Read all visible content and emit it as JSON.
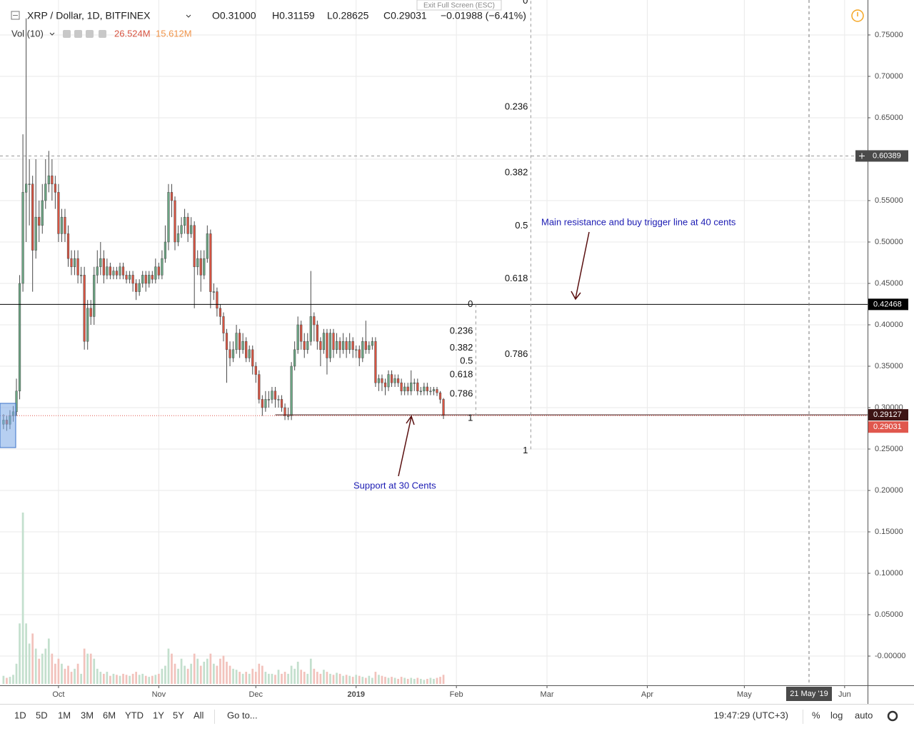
{
  "header": {
    "symbol": "XRP / Dollar, 1D, BITFINEX",
    "open": "O0.31000",
    "high": "H0.31159",
    "low": "L0.28625",
    "close": "C0.29031",
    "change": "−0.01988 (−6.41%)",
    "volume_indicator": "Vol (10)",
    "volume": "26.524M",
    "volume_ma": "15.612M",
    "exit_fullscreen": "Exit Full Screen (ESC)"
  },
  "chart_data": {
    "type": "candlestick",
    "up_color": "#6ba583",
    "down_color": "#d75442",
    "wick_color": "#4a4a4a",
    "volume_up_color": "#c3dfcd",
    "volume_down_color": "#f2c2bc",
    "xlim": [
      -1.08,
      267.1
    ],
    "xticks": [
      {
        "value": 17,
        "label": "Oct"
      },
      {
        "value": 48,
        "label": "Nov"
      },
      {
        "value": 78,
        "label": "Dec"
      },
      {
        "value": 109,
        "label": "2019"
      },
      {
        "value": 140,
        "label": "Feb"
      },
      {
        "value": 168,
        "label": "Mar"
      },
      {
        "value": 199,
        "label": "Apr"
      },
      {
        "value": 229,
        "label": "May"
      },
      {
        "value": 260,
        "label": "Jun"
      }
    ],
    "ylim": [
      -0.0353,
      0.7922
    ],
    "yticks": [
      {
        "value": 0.75,
        "label": "0.75000"
      },
      {
        "value": 0.7,
        "label": "0.70000"
      },
      {
        "value": 0.65,
        "label": "0.65000"
      },
      {
        "value": 0.6,
        "label": "0.60000"
      },
      {
        "value": 0.55,
        "label": "0.55000"
      },
      {
        "value": 0.5,
        "label": "0.50000"
      },
      {
        "value": 0.45,
        "label": "0.45000"
      },
      {
        "value": 0.4,
        "label": "0.40000"
      },
      {
        "value": 0.35,
        "label": "0.35000"
      },
      {
        "value": 0.3,
        "label": "0.30000"
      },
      {
        "value": 0.25,
        "label": "0.25000"
      },
      {
        "value": 0.2,
        "label": "0.20000"
      },
      {
        "value": 0.15,
        "label": "0.15000"
      },
      {
        "value": 0.1,
        "label": "0.10000"
      },
      {
        "value": 0.05,
        "label": "0.05000"
      },
      {
        "value": 0,
        "label": "-0.00000"
      }
    ],
    "grid": true,
    "candles": [
      [
        0.28,
        0.292,
        0.274,
        0.285
      ],
      [
        0.285,
        0.29,
        0.272,
        0.28
      ],
      [
        0.28,
        0.297,
        0.274,
        0.29
      ],
      [
        0.29,
        0.302,
        0.283,
        0.295
      ],
      [
        0.295,
        0.335,
        0.29,
        0.32
      ],
      [
        0.32,
        0.46,
        0.31,
        0.45
      ],
      [
        0.45,
        0.63,
        0.44,
        0.56
      ],
      [
        0.56,
        0.77,
        0.5,
        0.57
      ],
      [
        0.57,
        0.6,
        0.52,
        0.57
      ],
      [
        0.57,
        0.58,
        0.44,
        0.49
      ],
      [
        0.49,
        0.6,
        0.48,
        0.53
      ],
      [
        0.53,
        0.55,
        0.5,
        0.52
      ],
      [
        0.52,
        0.57,
        0.51,
        0.55
      ],
      [
        0.55,
        0.6,
        0.54,
        0.57
      ],
      [
        0.57,
        0.61,
        0.56,
        0.58
      ],
      [
        0.58,
        0.6,
        0.55,
        0.57
      ],
      [
        0.57,
        0.58,
        0.54,
        0.56
      ],
      [
        0.56,
        0.57,
        0.5,
        0.51
      ],
      [
        0.51,
        0.54,
        0.5,
        0.53
      ],
      [
        0.53,
        0.54,
        0.5,
        0.51
      ],
      [
        0.51,
        0.52,
        0.47,
        0.48
      ],
      [
        0.48,
        0.49,
        0.46,
        0.47
      ],
      [
        0.47,
        0.49,
        0.46,
        0.48
      ],
      [
        0.48,
        0.49,
        0.45,
        0.46
      ],
      [
        0.46,
        0.47,
        0.45,
        0.46
      ],
      [
        0.46,
        0.47,
        0.37,
        0.38
      ],
      [
        0.38,
        0.43,
        0.37,
        0.42
      ],
      [
        0.42,
        0.43,
        0.4,
        0.41
      ],
      [
        0.41,
        0.47,
        0.4,
        0.46
      ],
      [
        0.46,
        0.49,
        0.45,
        0.47
      ],
      [
        0.47,
        0.5,
        0.46,
        0.48
      ],
      [
        0.48,
        0.49,
        0.45,
        0.46
      ],
      [
        0.46,
        0.48,
        0.455,
        0.47
      ],
      [
        0.47,
        0.475,
        0.455,
        0.46
      ],
      [
        0.46,
        0.47,
        0.455,
        0.465
      ],
      [
        0.465,
        0.47,
        0.455,
        0.46
      ],
      [
        0.46,
        0.475,
        0.455,
        0.47
      ],
      [
        0.47,
        0.475,
        0.455,
        0.46
      ],
      [
        0.46,
        0.465,
        0.45,
        0.455
      ],
      [
        0.455,
        0.465,
        0.45,
        0.46
      ],
      [
        0.46,
        0.465,
        0.44,
        0.45
      ],
      [
        0.45,
        0.455,
        0.43,
        0.44
      ],
      [
        0.44,
        0.455,
        0.435,
        0.45
      ],
      [
        0.45,
        0.465,
        0.445,
        0.46
      ],
      [
        0.46,
        0.465,
        0.44,
        0.45
      ],
      [
        0.45,
        0.465,
        0.445,
        0.46
      ],
      [
        0.46,
        0.465,
        0.45,
        0.455
      ],
      [
        0.455,
        0.48,
        0.45,
        0.47
      ],
      [
        0.47,
        0.475,
        0.455,
        0.46
      ],
      [
        0.46,
        0.49,
        0.455,
        0.48
      ],
      [
        0.48,
        0.52,
        0.475,
        0.5
      ],
      [
        0.5,
        0.57,
        0.49,
        0.56
      ],
      [
        0.56,
        0.57,
        0.53,
        0.55
      ],
      [
        0.55,
        0.555,
        0.49,
        0.5
      ],
      [
        0.5,
        0.52,
        0.495,
        0.51
      ],
      [
        0.51,
        0.53,
        0.505,
        0.52
      ],
      [
        0.52,
        0.54,
        0.51,
        0.53
      ],
      [
        0.53,
        0.535,
        0.5,
        0.51
      ],
      [
        0.51,
        0.53,
        0.505,
        0.52
      ],
      [
        0.52,
        0.525,
        0.42,
        0.47
      ],
      [
        0.47,
        0.49,
        0.46,
        0.48
      ],
      [
        0.48,
        0.49,
        0.44,
        0.46
      ],
      [
        0.46,
        0.49,
        0.455,
        0.48
      ],
      [
        0.48,
        0.52,
        0.475,
        0.51
      ],
      [
        0.51,
        0.515,
        0.42,
        0.44
      ],
      [
        0.44,
        0.45,
        0.43,
        0.44
      ],
      [
        0.44,
        0.445,
        0.41,
        0.42
      ],
      [
        0.42,
        0.425,
        0.4,
        0.41
      ],
      [
        0.41,
        0.415,
        0.38,
        0.39
      ],
      [
        0.39,
        0.395,
        0.33,
        0.37
      ],
      [
        0.37,
        0.38,
        0.35,
        0.36
      ],
      [
        0.36,
        0.38,
        0.355,
        0.37
      ],
      [
        0.37,
        0.4,
        0.365,
        0.39
      ],
      [
        0.39,
        0.395,
        0.36,
        0.37
      ],
      [
        0.37,
        0.39,
        0.365,
        0.38
      ],
      [
        0.38,
        0.385,
        0.355,
        0.36
      ],
      [
        0.36,
        0.375,
        0.355,
        0.37
      ],
      [
        0.37,
        0.375,
        0.34,
        0.35
      ],
      [
        0.35,
        0.355,
        0.33,
        0.34
      ],
      [
        0.34,
        0.345,
        0.305,
        0.31
      ],
      [
        0.31,
        0.315,
        0.29,
        0.3
      ],
      [
        0.3,
        0.32,
        0.295,
        0.31
      ],
      [
        0.31,
        0.32,
        0.3,
        0.31
      ],
      [
        0.31,
        0.325,
        0.305,
        0.32
      ],
      [
        0.32,
        0.325,
        0.3,
        0.31
      ],
      [
        0.31,
        0.315,
        0.3,
        0.31
      ],
      [
        0.31,
        0.315,
        0.295,
        0.3
      ],
      [
        0.3,
        0.305,
        0.285,
        0.29
      ],
      [
        0.29,
        0.3,
        0.285,
        0.29
      ],
      [
        0.29,
        0.355,
        0.285,
        0.35
      ],
      [
        0.35,
        0.38,
        0.345,
        0.37
      ],
      [
        0.37,
        0.41,
        0.365,
        0.4
      ],
      [
        0.4,
        0.405,
        0.37,
        0.38
      ],
      [
        0.38,
        0.39,
        0.36,
        0.37
      ],
      [
        0.37,
        0.39,
        0.365,
        0.38
      ],
      [
        0.38,
        0.465,
        0.375,
        0.41
      ],
      [
        0.41,
        0.415,
        0.38,
        0.4
      ],
      [
        0.4,
        0.405,
        0.37,
        0.38
      ],
      [
        0.38,
        0.385,
        0.35,
        0.37
      ],
      [
        0.37,
        0.395,
        0.365,
        0.39
      ],
      [
        0.39,
        0.395,
        0.34,
        0.36
      ],
      [
        0.36,
        0.395,
        0.355,
        0.39
      ],
      [
        0.39,
        0.395,
        0.36,
        0.37
      ],
      [
        0.37,
        0.39,
        0.365,
        0.38
      ],
      [
        0.38,
        0.385,
        0.36,
        0.37
      ],
      [
        0.37,
        0.39,
        0.365,
        0.38
      ],
      [
        0.38,
        0.385,
        0.36,
        0.37
      ],
      [
        0.37,
        0.39,
        0.365,
        0.38
      ],
      [
        0.38,
        0.385,
        0.36,
        0.37
      ],
      [
        0.37,
        0.375,
        0.36,
        0.37
      ],
      [
        0.37,
        0.375,
        0.35,
        0.36
      ],
      [
        0.36,
        0.385,
        0.355,
        0.38
      ],
      [
        0.38,
        0.405,
        0.365,
        0.37
      ],
      [
        0.37,
        0.38,
        0.365,
        0.375
      ],
      [
        0.375,
        0.385,
        0.37,
        0.38
      ],
      [
        0.38,
        0.385,
        0.325,
        0.33
      ],
      [
        0.33,
        0.34,
        0.32,
        0.335
      ],
      [
        0.335,
        0.34,
        0.32,
        0.33
      ],
      [
        0.33,
        0.335,
        0.315,
        0.325
      ],
      [
        0.325,
        0.345,
        0.32,
        0.34
      ],
      [
        0.34,
        0.345,
        0.325,
        0.33
      ],
      [
        0.33,
        0.34,
        0.325,
        0.335
      ],
      [
        0.335,
        0.34,
        0.325,
        0.33
      ],
      [
        0.33,
        0.335,
        0.315,
        0.32
      ],
      [
        0.32,
        0.33,
        0.315,
        0.325
      ],
      [
        0.325,
        0.33,
        0.315,
        0.32
      ],
      [
        0.32,
        0.345,
        0.315,
        0.33
      ],
      [
        0.33,
        0.335,
        0.32,
        0.33
      ],
      [
        0.33,
        0.335,
        0.315,
        0.32
      ],
      [
        0.32,
        0.325,
        0.315,
        0.32
      ],
      [
        0.32,
        0.33,
        0.315,
        0.325
      ],
      [
        0.325,
        0.33,
        0.315,
        0.32
      ],
      [
        0.32,
        0.325,
        0.315,
        0.32
      ],
      [
        0.32,
        0.325,
        0.315,
        0.322
      ],
      [
        0.322,
        0.325,
        0.314,
        0.318
      ],
      [
        0.318,
        0.32,
        0.305,
        0.31
      ],
      [
        0.31,
        0.31159,
        0.28625,
        0.29031
      ]
    ],
    "volume": [
      8,
      6,
      7,
      9,
      20,
      60,
      170,
      60,
      40,
      50,
      35,
      25,
      30,
      35,
      45,
      30,
      20,
      25,
      20,
      15,
      18,
      12,
      15,
      20,
      10,
      35,
      30,
      30,
      25,
      15,
      12,
      10,
      12,
      8,
      10,
      9,
      8,
      10,
      9,
      8,
      10,
      12,
      9,
      10,
      8,
      7,
      8,
      9,
      10,
      15,
      18,
      35,
      30,
      20,
      15,
      25,
      18,
      15,
      20,
      30,
      25,
      18,
      22,
      25,
      30,
      20,
      18,
      25,
      28,
      22,
      18,
      15,
      14,
      12,
      10,
      12,
      10,
      15,
      12,
      20,
      18,
      12,
      10,
      10,
      9,
      14,
      10,
      12,
      10,
      18,
      15,
      22,
      14,
      12,
      10,
      25,
      15,
      12,
      10,
      14,
      12,
      10,
      9,
      11,
      10,
      8,
      9,
      8,
      7,
      9,
      8,
      7,
      6,
      8,
      6,
      12,
      9,
      8,
      7,
      6,
      7,
      6,
      5,
      7,
      6,
      5,
      6,
      5,
      6,
      5,
      4,
      5,
      6,
      5,
      6,
      7,
      9
    ],
    "price_lines": [
      {
        "value": 0.42468,
        "color": "#000000",
        "start": -1.08
      },
      {
        "value": 0.29127,
        "color": "#3d1414",
        "start": 84
      }
    ],
    "last_price": {
      "value": 0.29031,
      "color": "#e0574d"
    },
    "crosshair": {
      "x": 249,
      "y": 0.60389,
      "x_label": "21 May '19"
    },
    "fibs": [
      {
        "x": 146,
        "from": 0.42468,
        "to": 0.287,
        "levels": [
          0,
          0.236,
          0.382,
          0.5,
          0.618,
          0.786,
          1
        ]
      },
      {
        "x": 163,
        "from": 0.791,
        "to": 0.248,
        "levels": [
          0,
          0.236,
          0.382,
          0.5,
          0.618,
          0.786,
          1
        ]
      }
    ],
    "annotations": [
      "Main resistance and buy trigger line at 40 cents",
      "Support at 30 Cents"
    ]
  },
  "toolbar": {
    "ranges": [
      "1D",
      "5D",
      "1M",
      "3M",
      "6M",
      "YTD",
      "1Y",
      "5Y",
      "All"
    ],
    "goto": "Go to...",
    "time": "19:47:29 (UTC+3)",
    "percent": "%",
    "log": "log",
    "auto": "auto"
  }
}
